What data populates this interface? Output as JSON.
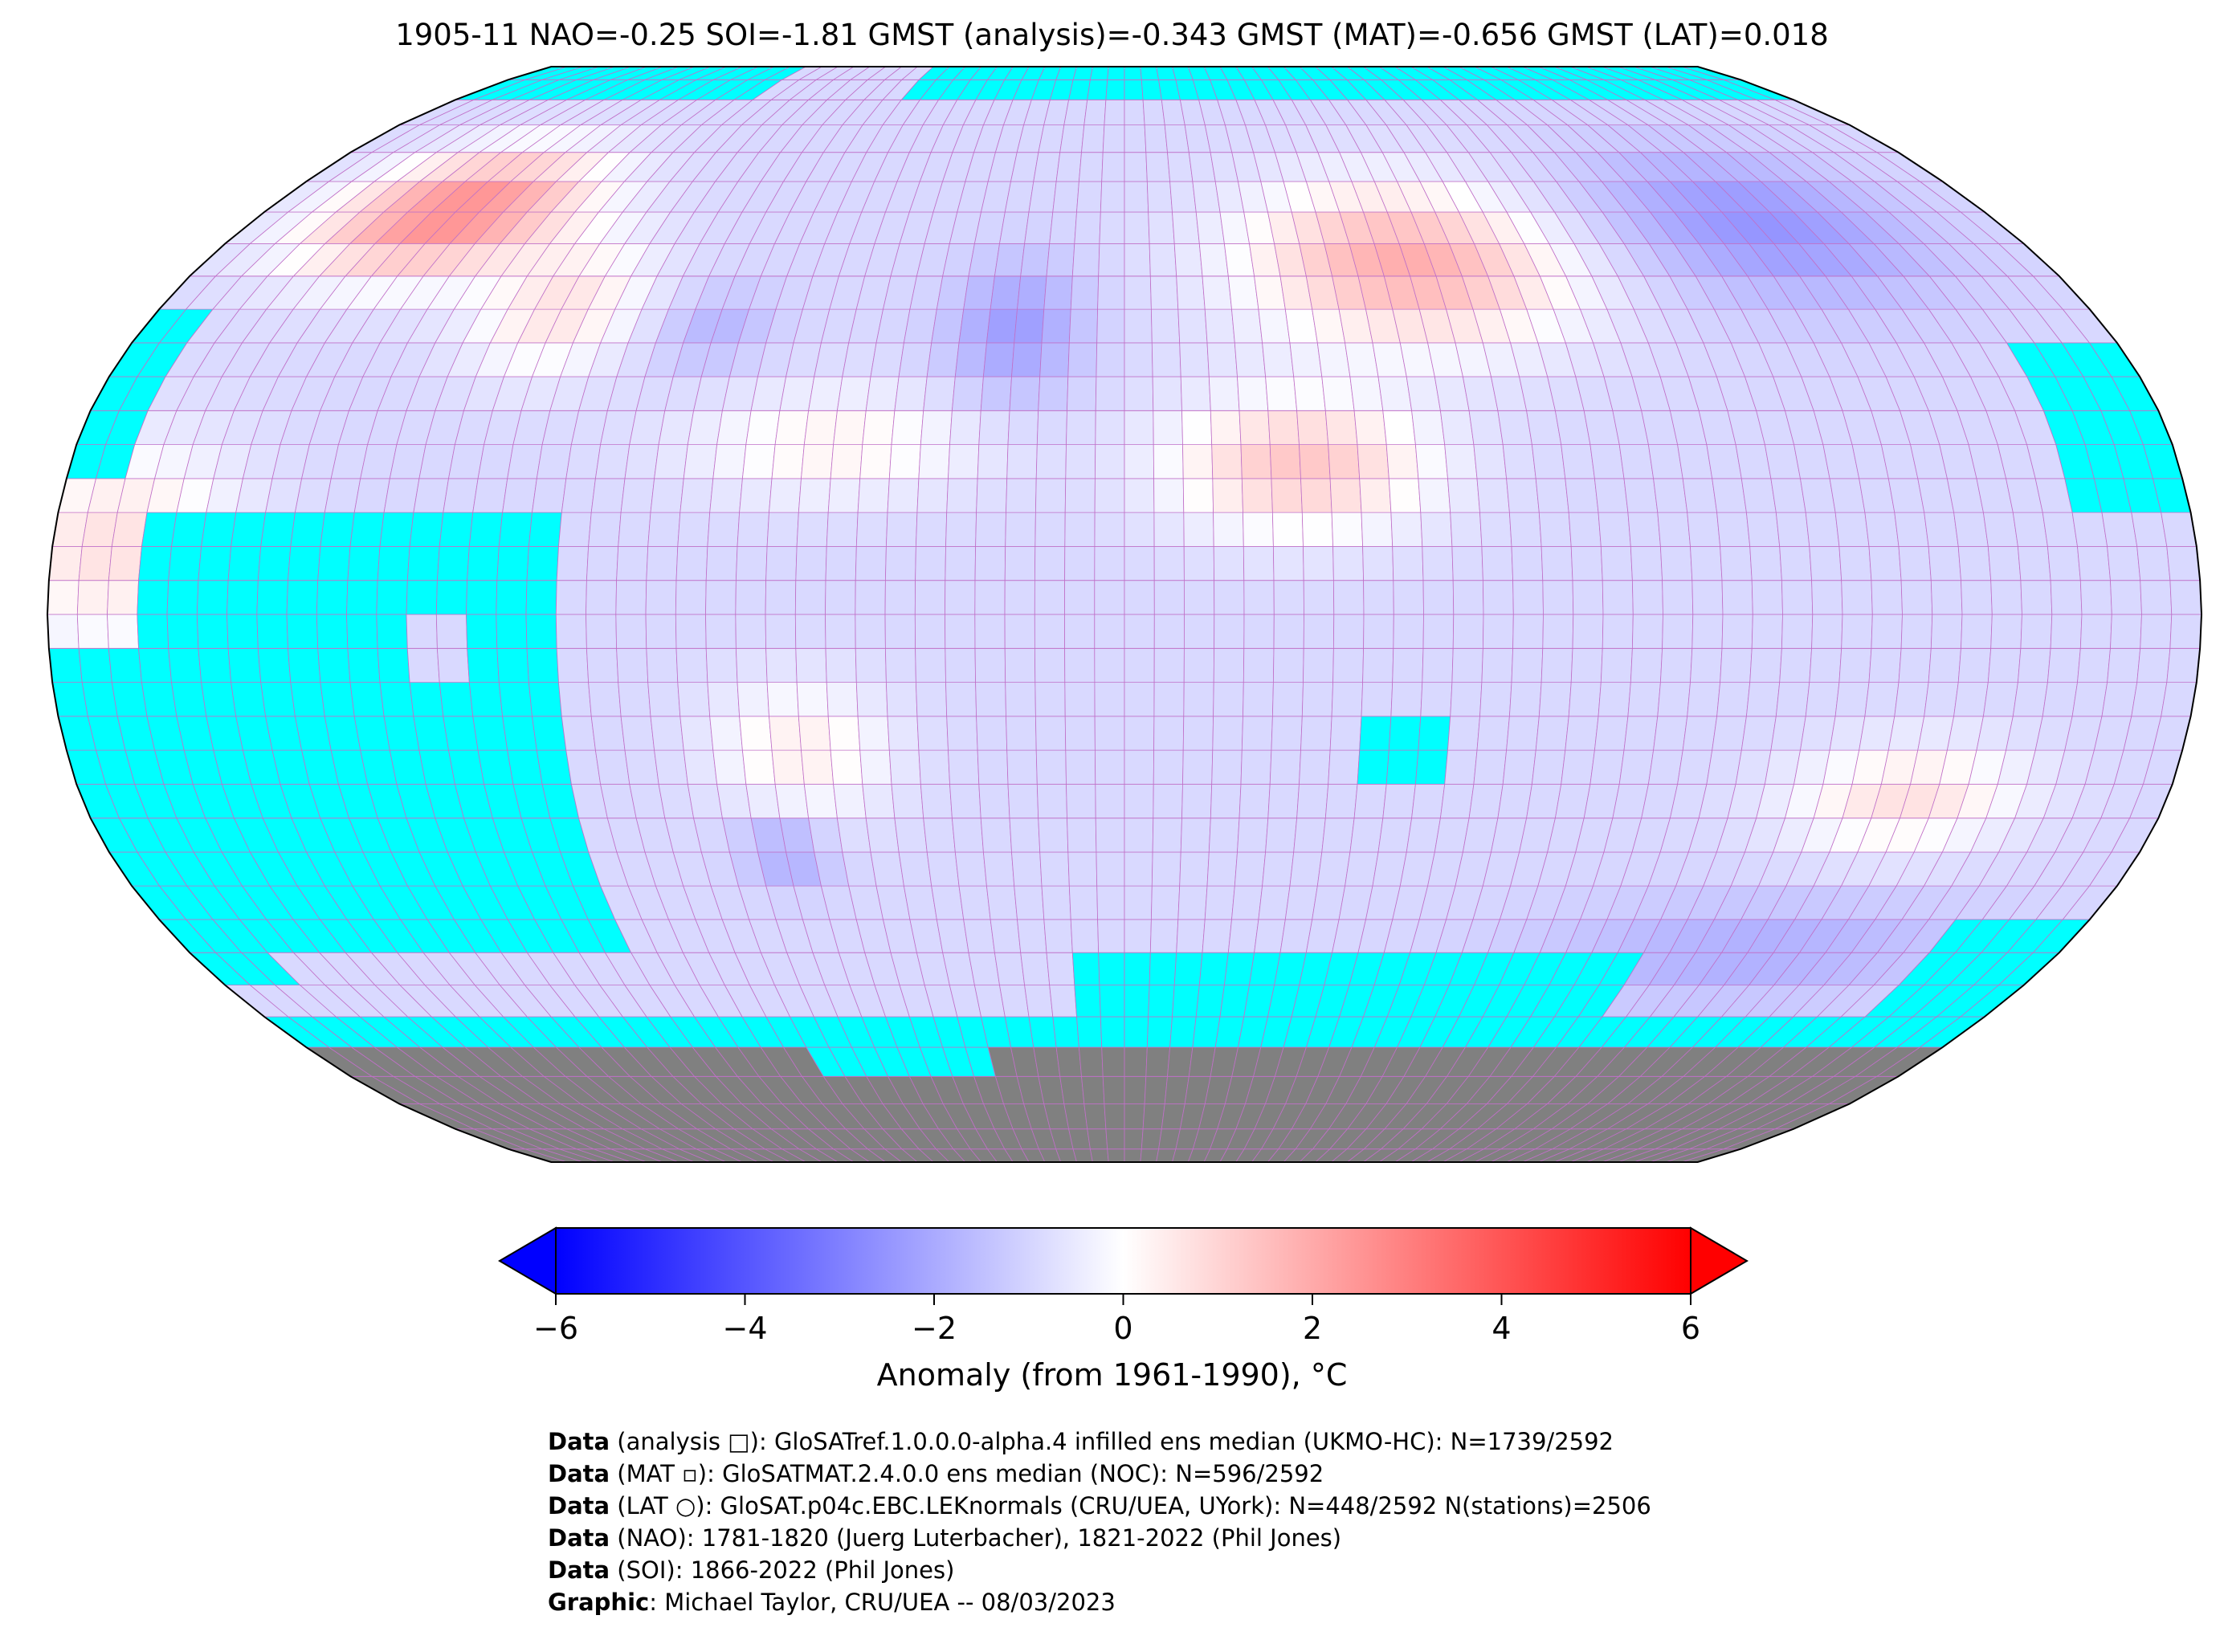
{
  "title": "1905-11 NAO=-0.25 SOI=-1.81 GMST (analysis)=-0.343 GMST (MAT)=-0.656 GMST (LAT)=0.018",
  "colors": {
    "missing": "#00ffff",
    "land_ice": "#808080",
    "cold": "#0000ff",
    "neutral": "#ffffff",
    "warm": "#ff0000",
    "gridline": "#c070c8"
  },
  "colorbar": {
    "label": "Anomaly (from 1961-1990), °C",
    "range": [
      -6,
      6
    ],
    "colormap": "bwr",
    "ticks": [
      "−6",
      "−4",
      "−2",
      "0",
      "2",
      "4",
      "6"
    ],
    "extend": "both"
  },
  "footer": [
    {
      "bold": "Data",
      "text": " (analysis □): GloSATref.1.0.0.0-alpha.4 infilled ens median (UKMO-HC): N=1739/2592"
    },
    {
      "bold": "Data",
      "text": " (MAT ▫): GloSATMAT.2.4.0.0 ens median (NOC): N=596/2592"
    },
    {
      "bold": "Data",
      "text": " (LAT ○): GloSAT.p04c.EBC.LEKnormals (CRU/UEA, UYork): N=448/2592 N(stations)=2506"
    },
    {
      "bold": "Data",
      "text": " (NAO): 1781-1820 (Juerg Luterbacher), 1821-2022 (Phil Jones)"
    },
    {
      "bold": "Data",
      "text": " (SOI): 1866-2022 (Phil Jones)"
    },
    {
      "bold": "Graphic",
      "text": ": Michael Taylor, CRU/UEA -- 08/03/2023"
    }
  ],
  "map": {
    "projection": "Robinson",
    "grid_resolution_deg": 5
  }
}
